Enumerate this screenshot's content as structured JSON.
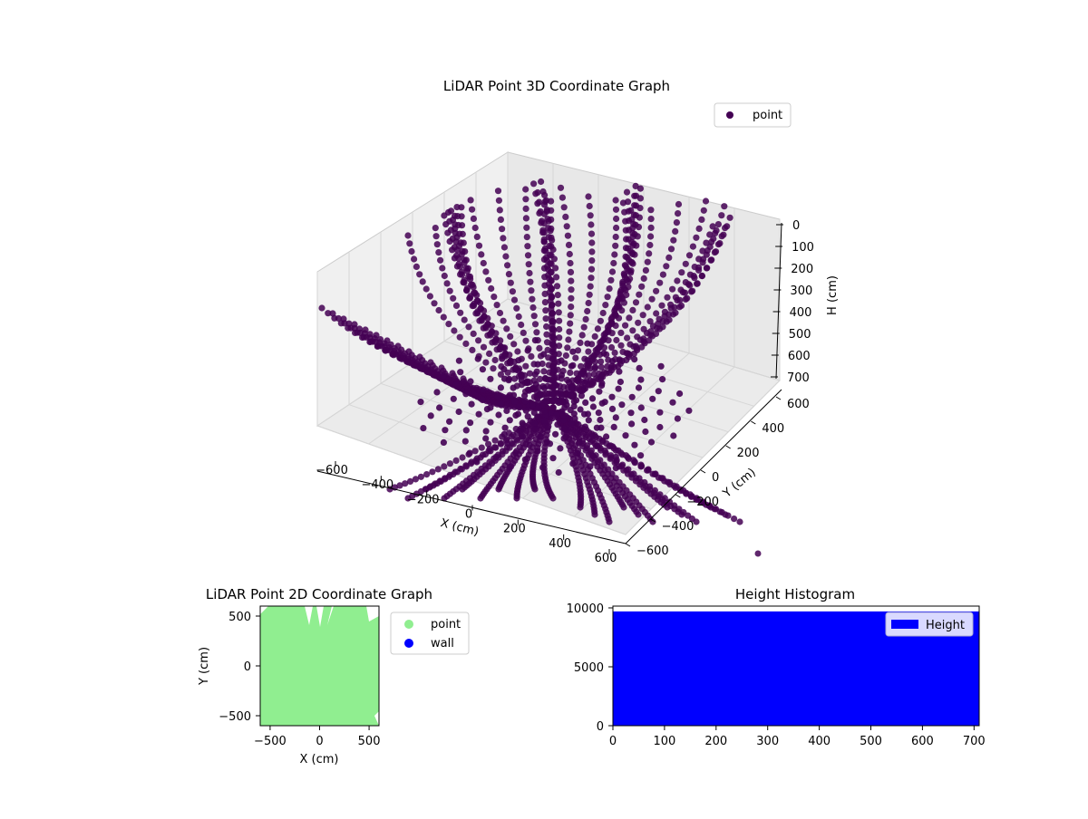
{
  "chart_data": [
    {
      "type": "scatter",
      "projection": "3d",
      "title": "LiDAR Point 3D Coordinate Graph",
      "xlabel": "X (cm)",
      "ylabel": "Y (cm)",
      "zlabel": "H (cm)",
      "xlim": [
        -600,
        600
      ],
      "ylim": [
        -600,
        600
      ],
      "zlim": [
        700,
        0
      ],
      "x_ticks": [
        "−600",
        "−400",
        "−200",
        "0",
        "200",
        "400",
        "600"
      ],
      "y_ticks": [
        "−600",
        "−400",
        "−200",
        "0",
        "200",
        "400",
        "600"
      ],
      "z_ticks": [
        "0",
        "100",
        "200",
        "300",
        "400",
        "500",
        "600",
        "700"
      ],
      "z_inverted": true,
      "grid": true,
      "legend": {
        "position": "top-right",
        "entries": [
          {
            "label": "point",
            "color": "#440154"
          }
        ]
      },
      "series": [
        {
          "name": "point",
          "color": "#440154",
          "note_shape": "dense radial scan arcs"
        }
      ]
    },
    {
      "type": "scatter",
      "title": "LiDAR Point 2D Coordinate Graph",
      "xlabel": "X (cm)",
      "ylabel": "Y (cm)",
      "xlim": [
        -600,
        600
      ],
      "ylim": [
        -600,
        600
      ],
      "x_ticks": [
        "−500",
        "0",
        "500"
      ],
      "y_ticks": [
        "−500",
        "0",
        "500"
      ],
      "legend": {
        "position": "outside-right",
        "entries": [
          {
            "label": "point",
            "color": "#90ee90"
          },
          {
            "label": "wall",
            "color": "#0000ff"
          }
        ]
      },
      "series": [
        {
          "name": "point",
          "color": "#90ee90"
        },
        {
          "name": "wall",
          "color": "#0000ff"
        }
      ]
    },
    {
      "type": "bar",
      "title": "Height Histogram",
      "xlim": [
        0,
        710
      ],
      "ylim": [
        0,
        10000
      ],
      "x_ticks": [
        "0",
        "100",
        "200",
        "300",
        "400",
        "500",
        "600",
        "700"
      ],
      "y_ticks": [
        "0",
        "5000",
        "10000"
      ],
      "legend": {
        "position": "top-right",
        "entries": [
          {
            "label": "Height",
            "color": "#0000ff"
          }
        ]
      },
      "series": [
        {
          "name": "Height",
          "color": "#0000ff",
          "bin_range": [
            0,
            710
          ],
          "value": 9700
        }
      ]
    }
  ]
}
